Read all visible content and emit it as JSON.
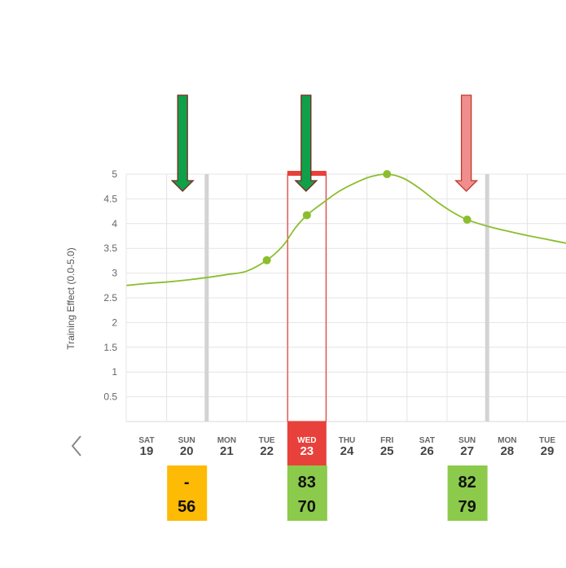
{
  "chart_data": {
    "type": "line",
    "ylabel": "Training Effect (0.0-5.0)",
    "ylim": [
      0,
      5
    ],
    "yticks": [
      "0.5",
      "1",
      "1.5",
      "2",
      "2.5",
      "3",
      "3.5",
      "4",
      "4.5",
      "5"
    ],
    "days": [
      {
        "dow": "SAT",
        "num": "19"
      },
      {
        "dow": "SUN",
        "num": "20"
      },
      {
        "dow": "MON",
        "num": "21"
      },
      {
        "dow": "TUE",
        "num": "22"
      },
      {
        "dow": "WED",
        "num": "23"
      },
      {
        "dow": "THU",
        "num": "24"
      },
      {
        "dow": "FRI",
        "num": "25"
      },
      {
        "dow": "SAT",
        "num": "26"
      },
      {
        "dow": "SUN",
        "num": "27"
      },
      {
        "dow": "MON",
        "num": "28"
      },
      {
        "dow": "TUE",
        "num": "29"
      }
    ],
    "selected_day_index": 4,
    "week_boundaries_after_day_index": [
      1,
      8
    ],
    "curve": [
      [
        -0.5,
        2.75
      ],
      [
        0,
        2.79
      ],
      [
        0.5,
        2.82
      ],
      [
        1,
        2.86
      ],
      [
        1.5,
        2.91
      ],
      [
        2,
        2.97
      ],
      [
        2.5,
        3.04
      ],
      [
        3,
        3.26
      ],
      [
        3.4,
        3.55
      ],
      [
        3.7,
        3.9
      ],
      [
        4,
        4.17
      ],
      [
        4.4,
        4.42
      ],
      [
        4.8,
        4.65
      ],
      [
        5.2,
        4.82
      ],
      [
        5.6,
        4.95
      ],
      [
        6,
        5.0
      ],
      [
        6.4,
        4.92
      ],
      [
        6.8,
        4.72
      ],
      [
        7.2,
        4.47
      ],
      [
        7.6,
        4.25
      ],
      [
        8,
        4.08
      ],
      [
        8.5,
        3.95
      ],
      [
        9,
        3.85
      ],
      [
        9.5,
        3.76
      ],
      [
        10,
        3.68
      ],
      [
        10.5,
        3.6
      ]
    ],
    "points": [
      {
        "day_index": 3,
        "value": 3.26
      },
      {
        "day_index": 4,
        "value": 4.17
      },
      {
        "day_index": 6,
        "value": 5.0
      },
      {
        "day_index": 8,
        "value": 4.08
      }
    ],
    "arrows": [
      {
        "day_index": 1,
        "style": "green"
      },
      {
        "day_index": 4,
        "style": "green"
      },
      {
        "day_index": 8,
        "style": "pink"
      }
    ],
    "score_boxes": [
      {
        "day_index": 1,
        "top": "-",
        "bottom": "56",
        "color": "#FDBB06"
      },
      {
        "day_index": 4,
        "top": "83",
        "bottom": "70",
        "color": "#8BCA4B"
      },
      {
        "day_index": 8,
        "top": "82",
        "bottom": "79",
        "color": "#8BCA4B"
      }
    ],
    "colors": {
      "line": "#8BBE2E",
      "grid": "#E4E4E4",
      "week_boundary": "#D3D3D3",
      "selected": "#E8403A",
      "arrow_green_fill": "#10A04A",
      "arrow_green_stroke": "#7A2A22",
      "arrow_pink_fill": "#F08E8E",
      "arrow_pink_stroke": "#C0392B"
    }
  }
}
